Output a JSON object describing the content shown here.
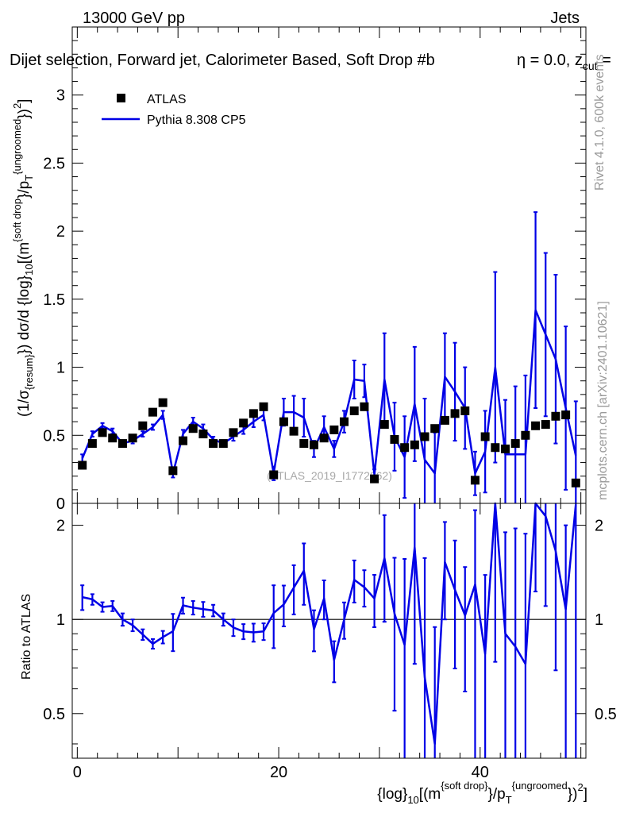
{
  "header": {
    "energy_label": "13000 GeV pp",
    "process_label": "Jets"
  },
  "side": {
    "rivet_label": "Rivet 4.1.0,  600k events",
    "mcplots_label": "mcplots.cern.ch [arXiv:2401.10621]"
  },
  "watermark": "(ATLAS_2019_I1772062)",
  "colors": {
    "mc": "#0000e6",
    "data": "#000000",
    "side_text": "#9a9a9a"
  },
  "chart_data": {
    "type": "scatter",
    "title": "Dijet selection, Forward jet, Calorimeter Based, Soft Drop #beta = 0.0, z_cut = ",
    "title_parts": {
      "main": "Dijet selection, Forward jet, Calorimeter Based, Soft Drop #b",
      "eta": "η = 0.0, z",
      "sub": "cut",
      "tail": " ="
    },
    "xlabel": {
      "a": "{log}",
      "sub1": "10",
      "b": "[(m",
      "sup1": "{soft drop}",
      "c": "}/p",
      "sub2": "T",
      "sup2": "{ungroomed",
      "d": "})",
      "sup3": "2",
      "e": "]"
    },
    "ylabel": {
      "a": "(1/σ",
      "sub1": "{resum}",
      "b": "}) dσ/d {log}",
      "sub2": "10",
      "c": "[(m",
      "sup1": "{soft drop",
      "d": "}/p",
      "sub3": "T",
      "sup2": "{ungroomed",
      "e": "})",
      "sup3": "2",
      "f": "]"
    },
    "ratio_ylabel": "Ratio to ATLAS",
    "xlim": [
      -0.5,
      50.5
    ],
    "ylim": [
      0,
      3.5
    ],
    "ratio_ylim": [
      0.36,
      2.35
    ],
    "x_ticks": [
      0,
      20,
      40
    ],
    "x_tick_labels": [
      "0",
      "20",
      "40"
    ],
    "y_ticks": [
      0.5,
      1,
      1.5,
      2,
      2.5,
      3
    ],
    "y_tick_labels": [
      "0.5",
      "1",
      "1.5",
      "2",
      "2.5",
      "3"
    ],
    "y_zero_label": "0",
    "ratio_ticks": [
      0.5,
      1,
      2
    ],
    "ratio_tick_labels": [
      "0.5",
      "1",
      "2"
    ],
    "legend": [
      {
        "label": "ATLAS",
        "kind": "marker"
      },
      {
        "label": "Pythia 8.308 CP5",
        "kind": "line"
      }
    ],
    "series": [
      {
        "name": "ATLAS",
        "x": [
          0.5,
          1.5,
          2.5,
          3.5,
          4.5,
          5.5,
          6.5,
          7.5,
          8.5,
          9.5,
          10.5,
          11.5,
          12.5,
          13.5,
          14.5,
          15.5,
          16.5,
          17.5,
          18.5,
          19.5,
          20.5,
          21.5,
          22.5,
          23.5,
          24.5,
          25.5,
          26.5,
          27.5,
          28.5,
          29.5,
          30.5,
          31.5,
          32.5,
          33.5,
          34.5,
          35.5,
          36.5,
          37.5,
          38.5,
          39.5,
          40.5,
          41.5,
          42.5,
          43.5,
          44.5,
          45.5,
          46.5,
          47.5,
          48.5,
          49.5
        ],
        "values": [
          0.28,
          0.44,
          0.52,
          0.48,
          0.44,
          0.48,
          0.57,
          0.67,
          0.74,
          0.24,
          0.46,
          0.55,
          0.51,
          0.44,
          0.44,
          0.52,
          0.59,
          0.66,
          0.71,
          0.21,
          0.6,
          0.53,
          0.44,
          0.43,
          0.48,
          0.54,
          0.6,
          0.68,
          0.71,
          0.18,
          0.58,
          0.47,
          0.41,
          0.43,
          0.49,
          0.55,
          0.61,
          0.66,
          0.68,
          0.17,
          0.49,
          0.41,
          0.4,
          0.44,
          0.5,
          0.57,
          0.58,
          0.64,
          0.65,
          0.15
        ]
      },
      {
        "name": "Pythia 8.308 CP5",
        "x": [
          0.5,
          1.5,
          2.5,
          3.5,
          4.5,
          5.5,
          6.5,
          7.5,
          8.5,
          9.5,
          10.5,
          11.5,
          12.5,
          13.5,
          14.5,
          15.5,
          16.5,
          17.5,
          18.5,
          19.5,
          20.5,
          21.5,
          22.5,
          23.5,
          24.5,
          25.5,
          26.5,
          27.5,
          28.5,
          29.5,
          30.5,
          31.5,
          32.5,
          33.5,
          34.5,
          35.5,
          36.5,
          37.5,
          38.5,
          39.5,
          40.5,
          41.5,
          42.5,
          43.5,
          44.5,
          45.5,
          46.5,
          47.5,
          48.5,
          49.5
        ],
        "values": [
          0.33,
          0.51,
          0.57,
          0.53,
          0.44,
          0.46,
          0.51,
          0.56,
          0.65,
          0.22,
          0.51,
          0.6,
          0.55,
          0.47,
          0.44,
          0.49,
          0.54,
          0.6,
          0.65,
          0.22,
          0.67,
          0.67,
          0.63,
          0.4,
          0.56,
          0.4,
          0.6,
          0.91,
          0.9,
          0.21,
          0.91,
          0.49,
          0.34,
          0.73,
          0.32,
          0.22,
          0.93,
          0.82,
          0.7,
          0.22,
          0.38,
          1.0,
          0.36,
          0.36,
          0.36,
          1.42,
          1.24,
          1.06,
          0.7,
          0.35
        ],
        "errors": [
          0.03,
          0.02,
          0.02,
          0.02,
          0.02,
          0.02,
          0.02,
          0.02,
          0.03,
          0.03,
          0.03,
          0.03,
          0.03,
          0.02,
          0.02,
          0.03,
          0.03,
          0.04,
          0.04,
          0.05,
          0.1,
          0.12,
          0.14,
          0.06,
          0.08,
          0.06,
          0.08,
          0.14,
          0.12,
          0.04,
          0.34,
          0.25,
          0.3,
          0.42,
          0.45,
          0.3,
          0.32,
          0.36,
          0.3,
          0.16,
          0.3,
          0.7,
          0.4,
          0.5,
          0.58,
          0.72,
          0.6,
          0.62,
          0.6,
          0.4
        ]
      }
    ],
    "ratio_reference": 1
  }
}
